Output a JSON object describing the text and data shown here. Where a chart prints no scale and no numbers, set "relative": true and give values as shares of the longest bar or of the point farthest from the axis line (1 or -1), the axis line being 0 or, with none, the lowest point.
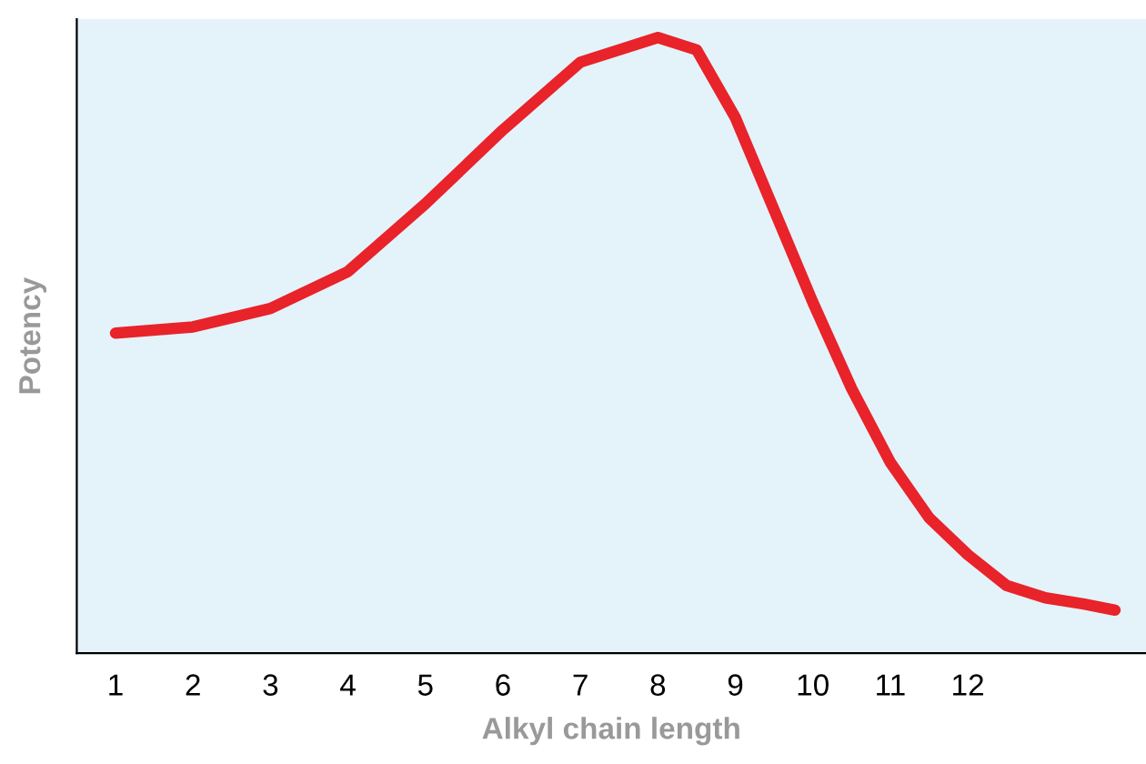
{
  "chart_data": {
    "type": "line",
    "relative": true,
    "xlabel": "Alkyl chain length",
    "ylabel": "Potency",
    "x": [
      1,
      2,
      3,
      4,
      5,
      6,
      7,
      8,
      8.5,
      9,
      9.5,
      10,
      10.5,
      11,
      11.5,
      12,
      12.5,
      13,
      13.5,
      13.9
    ],
    "series": [
      {
        "color": "#e8232a",
        "values": [
          0.52,
          0.53,
          0.56,
          0.62,
          0.73,
          0.85,
          0.96,
          1.0,
          0.98,
          0.87,
          0.72,
          0.57,
          0.43,
          0.31,
          0.22,
          0.16,
          0.11,
          0.09,
          0.08,
          0.07
        ]
      }
    ],
    "xlim": [
      0.5,
      14.3
    ],
    "xticks": [
      1,
      2,
      3,
      4,
      5,
      6,
      7,
      8,
      9,
      10,
      11,
      12
    ],
    "grid": false,
    "legend": false,
    "marker": "none",
    "line_style": "solid"
  }
}
